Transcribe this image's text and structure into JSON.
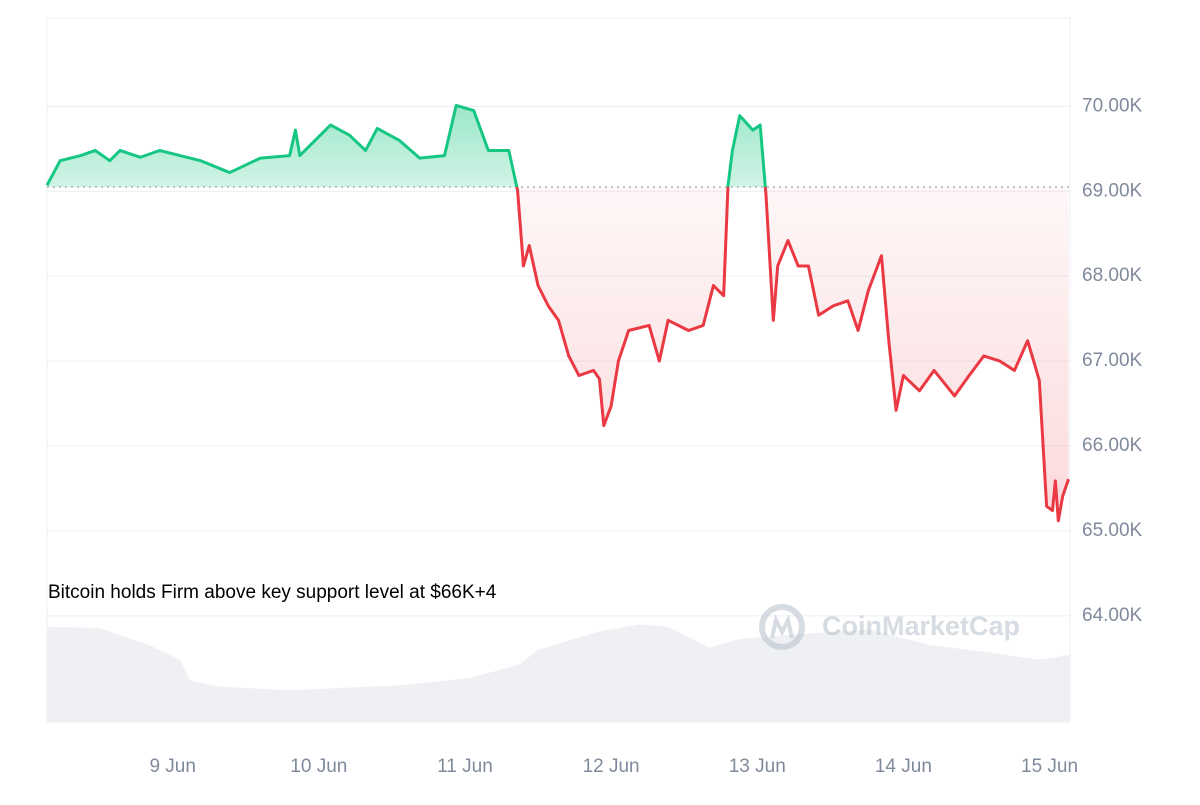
{
  "watermark": "CoinMarketCap",
  "chart_data": {
    "type": "line",
    "annotation": "Bitcoin holds Firm above key support level at $66K+4",
    "baseline": 69050,
    "above_color": "#16c784",
    "below_color": "#ea3943",
    "xlim": [
      8.14,
      15.14
    ],
    "xticks": [
      {
        "value": 9,
        "label": "9 Jun"
      },
      {
        "value": 10,
        "label": "10 Jun"
      },
      {
        "value": 11,
        "label": "11 Jun"
      },
      {
        "value": 12,
        "label": "12 Jun"
      },
      {
        "value": 13,
        "label": "13 Jun"
      },
      {
        "value": 14,
        "label": "14 Jun"
      },
      {
        "value": 15,
        "label": "15 Jun"
      }
    ],
    "ylim": [
      62750,
      71040
    ],
    "yticks": [
      {
        "value": 64000,
        "label": "64.00K"
      },
      {
        "value": 65000,
        "label": "65.00K"
      },
      {
        "value": 66000,
        "label": "66.00K"
      },
      {
        "value": 67000,
        "label": "67.00K"
      },
      {
        "value": 68000,
        "label": "68.00K"
      },
      {
        "value": 69000,
        "label": "69.00K"
      },
      {
        "value": 70000,
        "label": "70.00K"
      }
    ],
    "grid": true,
    "x": [
      8.14,
      8.23,
      8.37,
      8.47,
      8.57,
      8.64,
      8.78,
      8.91,
      9.05,
      9.19,
      9.39,
      9.6,
      9.8,
      9.84,
      9.87,
      10.08,
      10.21,
      10.32,
      10.4,
      10.55,
      10.69,
      10.86,
      10.94,
      11.06,
      11.16,
      11.3,
      11.36,
      11.4,
      11.44,
      11.5,
      11.57,
      11.64,
      11.71,
      11.78,
      11.88,
      11.92,
      11.95,
      12.0,
      12.05,
      12.12,
      12.26,
      12.33,
      12.39,
      12.53,
      12.63,
      12.7,
      12.77,
      12.8,
      12.83,
      12.88,
      12.97,
      13.02,
      13.06,
      13.11,
      13.14,
      13.21,
      13.28,
      13.35,
      13.42,
      13.52,
      13.62,
      13.69,
      13.76,
      13.85,
      13.9,
      13.95,
      14.0,
      14.11,
      14.21,
      14.35,
      14.45,
      14.55,
      14.66,
      14.76,
      14.85,
      14.9,
      14.93,
      14.98,
      15.02,
      15.04,
      15.06,
      15.09,
      15.13
    ],
    "values": [
      69070,
      69360,
      69420,
      69480,
      69360,
      69480,
      69400,
      69480,
      69420,
      69360,
      69220,
      69390,
      69420,
      69720,
      69420,
      69780,
      69660,
      69480,
      69740,
      69600,
      69390,
      69420,
      70010,
      69950,
      69480,
      69480,
      69010,
      68120,
      68360,
      67890,
      67650,
      67480,
      67060,
      66830,
      66890,
      66790,
      66240,
      66470,
      67000,
      67360,
      67420,
      67000,
      67480,
      67360,
      67420,
      67890,
      67770,
      69070,
      69480,
      69890,
      69720,
      69780,
      68950,
      67480,
      68120,
      68420,
      68120,
      68120,
      67540,
      67650,
      67710,
      67360,
      67830,
      68240,
      67240,
      66420,
      66830,
      66650,
      66890,
      66590,
      66830,
      67060,
      67000,
      66890,
      67240,
      66950,
      66770,
      65290,
      65240,
      65590,
      65120,
      65410,
      65610
    ],
    "volume": {
      "color": "#eef0f3",
      "ylim": [
        0,
        100
      ],
      "x": [
        8.14,
        8.5,
        8.84,
        9.05,
        9.12,
        9.32,
        9.8,
        10.55,
        11.03,
        11.37,
        11.5,
        11.91,
        12.19,
        12.39,
        12.67,
        12.88,
        13.29,
        13.77,
        14.18,
        14.59,
        14.93,
        15.14
      ],
      "values": [
        78,
        77,
        63,
        51,
        34,
        29,
        26,
        30,
        36,
        47,
        59,
        74,
        80,
        78,
        61,
        68,
        72,
        76,
        63,
        57,
        51,
        55
      ]
    }
  }
}
